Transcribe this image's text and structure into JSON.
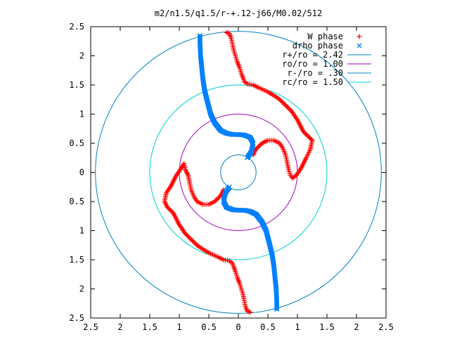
{
  "chart_data": {
    "type": "scatter",
    "title": "m2/n1.5/q1.5/r-+.12-j66/M0.02/512",
    "xlabel": "",
    "ylabel": "",
    "xlim": [
      -2.5,
      2.5
    ],
    "ylim": [
      -2.5,
      2.5
    ],
    "x_ticks": [
      -2.5,
      -2,
      -1.5,
      -1,
      -0.5,
      0,
      0.5,
      1,
      1.5,
      2,
      2.5
    ],
    "x_tick_labels": [
      "2.5",
      "2",
      "1.5",
      "1",
      "0.5",
      "0",
      "0.5",
      "1",
      "1.5",
      "2",
      "2.5"
    ],
    "y_ticks": [
      2.5,
      2,
      1.5,
      1,
      0.5,
      0,
      -0.5,
      -1,
      -1.5,
      -2,
      -2.5
    ],
    "y_tick_labels": [
      "2.5",
      "2",
      "1.5",
      "1",
      "0.5",
      "0",
      "0.5",
      "1",
      "1.5",
      "2",
      "2.5"
    ],
    "grid": false,
    "legend_position": "top-right",
    "series": [
      {
        "name": "W phase",
        "marker": "plus",
        "color": "#ff0000",
        "points": [
          [
            -0.2,
            2.4
          ],
          [
            -0.15,
            2.38
          ],
          [
            -0.12,
            2.3
          ],
          [
            -0.1,
            2.2
          ],
          [
            -0.08,
            2.1
          ],
          [
            -0.05,
            2.0
          ],
          [
            -0.02,
            1.9
          ],
          [
            0.02,
            1.8
          ],
          [
            0.05,
            1.7
          ],
          [
            0.08,
            1.62
          ],
          [
            0.1,
            1.56
          ],
          [
            0.15,
            1.52
          ],
          [
            0.25,
            1.5
          ],
          [
            0.35,
            1.45
          ],
          [
            0.5,
            1.38
          ],
          [
            0.6,
            1.32
          ],
          [
            0.7,
            1.25
          ],
          [
            0.8,
            1.15
          ],
          [
            0.9,
            1.05
          ],
          [
            1.0,
            0.9
          ],
          [
            1.05,
            0.8
          ],
          [
            1.1,
            0.7
          ],
          [
            1.2,
            0.6
          ],
          [
            1.25,
            0.55
          ],
          [
            1.22,
            0.4
          ],
          [
            1.15,
            0.25
          ],
          [
            1.1,
            0.15
          ],
          [
            1.05,
            0.05
          ],
          [
            0.98,
            -0.05
          ],
          [
            0.92,
            -0.1
          ],
          [
            0.88,
            -0.05
          ],
          [
            0.85,
            0.05
          ],
          [
            0.82,
            0.2
          ],
          [
            0.8,
            0.3
          ],
          [
            0.75,
            0.42
          ],
          [
            0.7,
            0.5
          ],
          [
            0.6,
            0.55
          ],
          [
            0.5,
            0.55
          ],
          [
            0.4,
            0.5
          ],
          [
            0.3,
            0.4
          ],
          [
            0.25,
            0.3
          ],
          [
            0.2,
            -2.4
          ],
          [
            0.15,
            -2.38
          ],
          [
            0.12,
            -2.3
          ],
          [
            0.1,
            -2.2
          ],
          [
            0.08,
            -2.1
          ],
          [
            0.05,
            -2.0
          ],
          [
            0.02,
            -1.9
          ],
          [
            -0.02,
            -1.8
          ],
          [
            -0.05,
            -1.7
          ],
          [
            -0.08,
            -1.62
          ],
          [
            -0.1,
            -1.56
          ],
          [
            -0.15,
            -1.52
          ],
          [
            -0.25,
            -1.5
          ],
          [
            -0.35,
            -1.45
          ],
          [
            -0.5,
            -1.38
          ],
          [
            -0.6,
            -1.32
          ],
          [
            -0.7,
            -1.25
          ],
          [
            -0.8,
            -1.15
          ],
          [
            -0.9,
            -1.05
          ],
          [
            -1.0,
            -0.9
          ],
          [
            -1.05,
            -0.8
          ],
          [
            -1.1,
            -0.7
          ],
          [
            -1.2,
            -0.6
          ],
          [
            -1.25,
            -0.5
          ],
          [
            -1.22,
            -0.35
          ],
          [
            -1.15,
            -0.25
          ],
          [
            -1.1,
            -0.15
          ],
          [
            -1.05,
            -0.05
          ],
          [
            -0.98,
            0.05
          ],
          [
            -0.92,
            0.15
          ],
          [
            -0.9,
            0.05
          ],
          [
            -0.85,
            -0.05
          ],
          [
            -0.82,
            -0.2
          ],
          [
            -0.8,
            -0.3
          ],
          [
            -0.75,
            -0.42
          ],
          [
            -0.7,
            -0.5
          ],
          [
            -0.6,
            -0.55
          ],
          [
            -0.5,
            -0.55
          ],
          [
            -0.4,
            -0.5
          ],
          [
            -0.3,
            -0.4
          ],
          [
            -0.25,
            -0.3
          ]
        ]
      },
      {
        "name": "drho phase",
        "marker": "cross",
        "color": "#0080ff",
        "points": [
          [
            -0.65,
            2.35
          ],
          [
            -0.65,
            2.2
          ],
          [
            -0.64,
            2.0
          ],
          [
            -0.62,
            1.8
          ],
          [
            -0.6,
            1.6
          ],
          [
            -0.57,
            1.4
          ],
          [
            -0.52,
            1.2
          ],
          [
            -0.47,
            1.0
          ],
          [
            -0.4,
            0.85
          ],
          [
            -0.3,
            0.72
          ],
          [
            -0.2,
            0.67
          ],
          [
            -0.1,
            0.65
          ],
          [
            0.0,
            0.65
          ],
          [
            0.1,
            0.64
          ],
          [
            0.2,
            0.6
          ],
          [
            0.25,
            0.5
          ],
          [
            0.22,
            0.35
          ],
          [
            0.15,
            0.25
          ],
          [
            0.65,
            -2.35
          ],
          [
            0.65,
            -2.2
          ],
          [
            0.64,
            -2.0
          ],
          [
            0.62,
            -1.8
          ],
          [
            0.6,
            -1.6
          ],
          [
            0.57,
            -1.4
          ],
          [
            0.52,
            -1.2
          ],
          [
            0.47,
            -1.0
          ],
          [
            0.4,
            -0.85
          ],
          [
            0.3,
            -0.72
          ],
          [
            0.2,
            -0.67
          ],
          [
            0.1,
            -0.65
          ],
          [
            0.0,
            -0.65
          ],
          [
            -0.1,
            -0.64
          ],
          [
            -0.2,
            -0.6
          ],
          [
            -0.25,
            -0.5
          ],
          [
            -0.22,
            -0.35
          ],
          [
            -0.15,
            -0.25
          ]
        ]
      },
      {
        "name": "r+/ro = 2.42",
        "type": "circle",
        "radius": 2.42,
        "color": "#0080c0"
      },
      {
        "name": "ro/ro = 1.00",
        "type": "circle",
        "radius": 1.0,
        "color": "#a000c0"
      },
      {
        "name": "r-/ro = .30",
        "type": "circle",
        "radius": 0.3,
        "color": "#0080c0"
      },
      {
        "name": "rc/ro = 1.50",
        "type": "circle",
        "radius": 1.5,
        "color": "#00d0d0"
      }
    ]
  }
}
